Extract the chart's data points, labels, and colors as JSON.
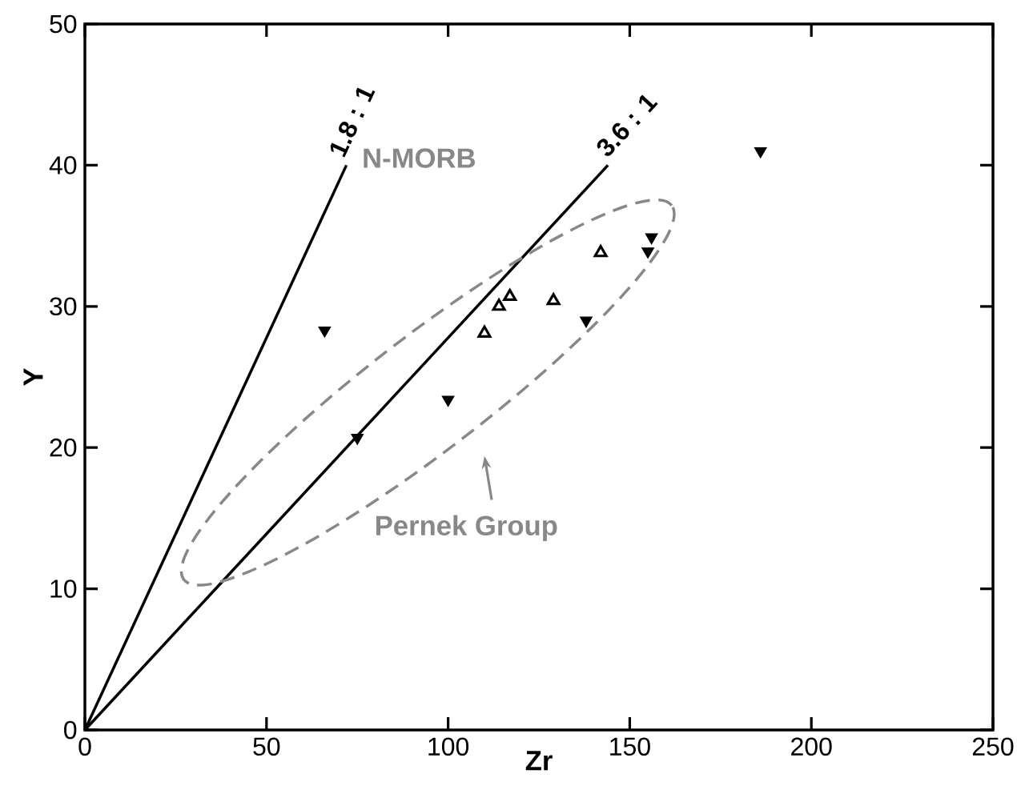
{
  "chart_data": {
    "type": "scatter",
    "xlabel": "Zr",
    "ylabel": "Y",
    "xlim": [
      0,
      250
    ],
    "ylim": [
      0,
      50
    ],
    "xticks": [
      0,
      50,
      100,
      150,
      200,
      250
    ],
    "yticks": [
      0,
      10,
      20,
      30,
      40,
      50
    ],
    "grid": false,
    "legend": false,
    "series": [
      {
        "name": "1.8 : 1",
        "type": "line",
        "color": "#000000",
        "line_style": "solid",
        "marker": "none",
        "x": [
          0,
          72
        ],
        "values": [
          0,
          40
        ]
      },
      {
        "name": "3.6 : 1",
        "type": "line",
        "color": "#000000",
        "line_style": "solid",
        "marker": "none",
        "x": [
          0,
          144
        ],
        "values": [
          0,
          40
        ]
      },
      {
        "color": "#000000",
        "marker": "triangle-down-filled",
        "x": [
          66,
          100,
          75,
          138,
          156,
          155,
          186
        ],
        "values": [
          28.3,
          23.4,
          20.7,
          29,
          34.9,
          33.9,
          41
        ]
      },
      {
        "color": "#000000",
        "marker": "triangle-open",
        "x": [
          110,
          114,
          117,
          129,
          142
        ],
        "values": [
          28.1,
          30,
          30.7,
          30.4,
          33.8
        ]
      }
    ],
    "annotations": [
      "N-MORB",
      "Pernek Group"
    ]
  }
}
